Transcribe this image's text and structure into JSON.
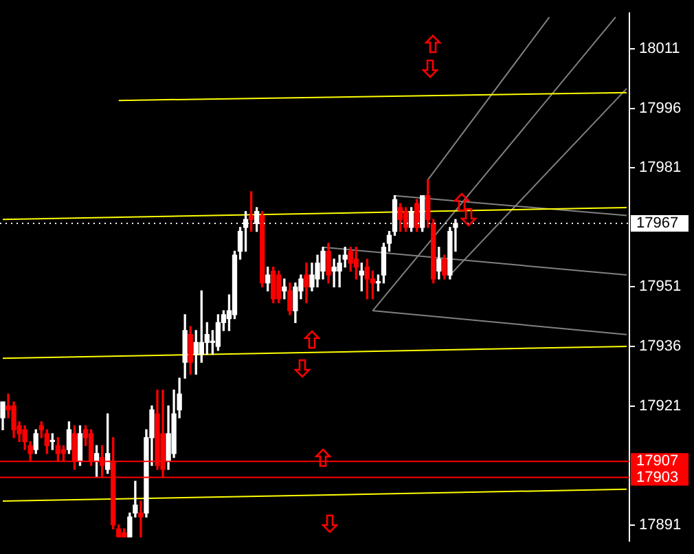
{
  "chart_data": {
    "type": "candlestick",
    "categories": [
      null,
      null,
      null,
      null,
      null,
      null,
      null,
      null,
      null,
      null,
      null,
      null,
      null,
      null,
      null,
      null,
      null,
      null,
      null,
      null,
      null,
      null,
      null,
      null,
      null,
      null,
      null,
      null,
      null,
      null,
      null,
      null,
      null,
      null,
      null,
      null,
      null,
      null,
      null,
      null,
      null,
      null,
      null,
      null,
      null,
      null,
      null,
      null,
      null,
      null,
      null,
      null,
      null,
      null,
      null,
      null,
      null,
      null,
      null,
      null,
      null,
      null,
      null,
      null,
      null,
      null,
      null,
      null,
      null,
      null,
      null,
      null,
      null,
      null,
      null,
      null,
      null,
      null,
      null,
      null,
      null,
      null,
      null,
      null,
      null,
      null,
      null,
      null,
      null,
      null,
      null,
      null,
      null,
      null,
      null,
      null,
      null,
      null,
      null,
      null,
      null,
      null,
      null,
      null,
      null,
      null,
      null,
      null,
      null,
      null,
      null,
      null,
      null,
      null
    ],
    "ohlc": [
      [
        17918,
        17922,
        17915,
        17922
      ],
      [
        17921,
        17924,
        17918,
        17920
      ],
      [
        17921,
        17922,
        17913,
        17915
      ],
      [
        17916,
        17917,
        17912,
        17914
      ],
      [
        17915,
        17916,
        17910,
        17912
      ],
      [
        17911,
        17912,
        17907,
        17909
      ],
      [
        17910,
        17915,
        17909,
        17914
      ],
      [
        17916,
        17917,
        17913,
        17915
      ],
      [
        17914,
        17915,
        17909,
        17911
      ],
      [
        17912,
        17914,
        17910,
        17912
      ],
      [
        17911,
        17913,
        17907,
        17909
      ],
      [
        17910,
        17911,
        17907,
        17909
      ],
      [
        17910,
        17917,
        17909,
        17915
      ],
      [
        17914,
        17916,
        17905,
        17907
      ],
      [
        17907,
        17916,
        17906,
        17914
      ],
      [
        17915,
        17916,
        17911,
        17913
      ],
      [
        17914,
        17915,
        17906,
        17907
      ],
      [
        17907,
        17911,
        17903,
        17909
      ],
      [
        17908,
        17911,
        17903,
        17906
      ],
      [
        17905,
        17919,
        17904,
        17909
      ],
      [
        17907,
        17913,
        17890,
        17891
      ],
      [
        17890,
        17891,
        17888,
        17888
      ],
      [
        17889,
        17890,
        17888,
        17888
      ],
      [
        17888,
        17894,
        17888,
        17893
      ],
      [
        17894,
        17902,
        17893,
        17896
      ],
      [
        17894,
        17897,
        17888,
        17893
      ],
      [
        17894,
        17915,
        17893,
        17913
      ],
      [
        17913,
        17921,
        17906,
        17920
      ],
      [
        17919,
        17925,
        17905,
        17906
      ],
      [
        17914,
        17925,
        17903,
        17905
      ],
      [
        17907,
        17921,
        17905,
        17914
      ],
      [
        17909,
        17925,
        17908,
        17919
      ],
      [
        17920,
        17928,
        17918,
        17924
      ],
      [
        17932,
        17944,
        17928,
        17940
      ],
      [
        17939,
        17941,
        17929,
        17932
      ],
      [
        17934,
        17940,
        17929,
        17937
      ],
      [
        17934,
        17950,
        17932,
        17937
      ],
      [
        17937,
        17942,
        17934,
        17939
      ],
      [
        17937,
        17940,
        17934,
        17937
      ],
      [
        17936,
        17944,
        17935,
        17942
      ],
      [
        17942,
        17945,
        17940,
        17944
      ],
      [
        17943,
        17949,
        17940,
        17945
      ],
      [
        17944,
        17960,
        17943,
        17959
      ],
      [
        17960,
        17966,
        17958,
        17965
      ],
      [
        17966,
        17970,
        17960,
        17968
      ],
      [
        17969,
        17975,
        17965,
        17968
      ],
      [
        17967,
        17971,
        17965,
        17970
      ],
      [
        17969,
        17970,
        17951,
        17952
      ],
      [
        17952,
        17956,
        17950,
        17954
      ],
      [
        17955,
        17956,
        17947,
        17948
      ],
      [
        17954,
        17955,
        17947,
        17948
      ],
      [
        17950,
        17953,
        17948,
        17951
      ],
      [
        17950,
        17952,
        17944,
        17945
      ],
      [
        17945,
        17952,
        17942,
        17951
      ],
      [
        17950,
        17954,
        17948,
        17953
      ],
      [
        17954,
        17957,
        17947,
        17951
      ],
      [
        17951,
        17957,
        17950,
        17954
      ],
      [
        17953,
        17959,
        17951,
        17957
      ],
      [
        17955,
        17961,
        17953,
        17960
      ],
      [
        17960,
        17962,
        17952,
        17954
      ],
      [
        17955,
        17958,
        17951,
        17956
      ],
      [
        17955,
        17959,
        17951,
        17957
      ],
      [
        17958,
        17961,
        17956,
        17959
      ],
      [
        17960,
        17961,
        17955,
        17957
      ],
      [
        17958,
        17961,
        17953,
        17956
      ],
      [
        17954,
        17957,
        17950,
        17955
      ],
      [
        17956,
        17958,
        17948,
        17953
      ],
      [
        17953,
        17955,
        17948,
        17952
      ],
      [
        17952,
        17954,
        17950,
        17952
      ],
      [
        17954,
        17962,
        17952,
        17961
      ],
      [
        17962,
        17965,
        17960,
        17964
      ],
      [
        17965,
        17974,
        17964,
        17973
      ],
      [
        17971,
        17972,
        17965,
        17968
      ],
      [
        17970,
        17971,
        17965,
        17966
      ],
      [
        17966,
        17971,
        17965,
        17970
      ],
      [
        17972,
        17973,
        17965,
        17966
      ],
      [
        17966,
        17974,
        17965,
        17974
      ],
      [
        17974,
        17978,
        17966,
        17968
      ],
      [
        17967,
        17968,
        17952,
        17953
      ],
      [
        17955,
        17961,
        17953,
        17958
      ],
      [
        17958,
        17959,
        17953,
        17954
      ],
      [
        17954,
        17966,
        17953,
        17965
      ],
      [
        17966,
        17968,
        17960,
        17967
      ],
      null,
      null,
      null,
      null,
      null,
      null,
      null,
      null,
      null,
      null,
      null,
      null,
      null,
      null,
      null,
      null,
      null,
      null,
      null,
      null,
      null,
      null,
      null,
      null,
      null,
      null,
      null,
      null,
      null,
      null,
      null
    ],
    "colors": [
      "#ffffff",
      "#ff0000",
      "#ff0000",
      "#ff0000",
      "#ff0000",
      "#ff0000",
      "#ffffff",
      "#ff0000",
      "#ff0000",
      "#ffffff",
      "#ff0000",
      "#ff0000",
      "#ffffff",
      "#ff0000",
      "#ffffff",
      "#ff0000",
      "#ff0000",
      "#ffffff",
      "#ff0000",
      "#ffffff",
      "#ff0000",
      "#ff0000",
      "#ff0000",
      "#ffffff",
      "#ffffff",
      "#ff0000",
      "#ffffff",
      "#ffffff",
      "#ff0000",
      "#ff0000",
      "#ffffff",
      "#ffffff",
      "#ffffff",
      "#ffffff",
      "#ff0000",
      "#ffffff",
      "#ffffff",
      "#ffffff",
      "#ffffff",
      "#ffffff",
      "#ffffff",
      "#ffffff",
      "#ffffff",
      "#ffffff",
      "#ffffff",
      "#ff0000",
      "#ffffff",
      "#ff0000",
      "#ffffff",
      "#ff0000",
      "#ff0000",
      "#ffffff",
      "#ff0000",
      "#ffffff",
      "#ffffff",
      "#ff0000",
      "#ffffff",
      "#ffffff",
      "#ffffff",
      "#ff0000",
      "#ffffff",
      "#ffffff",
      "#ffffff",
      "#ff0000",
      "#ff0000",
      "#ffffff",
      "#ff0000",
      "#ff0000",
      "#ffffff",
      "#ffffff",
      "#ffffff",
      "#ffffff",
      "#ff0000",
      "#ff0000",
      "#ffffff",
      "#ff0000",
      "#ffffff",
      "#ff0000",
      "#ff0000",
      "#ffffff",
      "#ff0000",
      "#ffffff",
      "#ffffff",
      null,
      null,
      null,
      null,
      null,
      null,
      null,
      null,
      null,
      null,
      null,
      null,
      null,
      null,
      null,
      null,
      null,
      null,
      null,
      null,
      null,
      null,
      null,
      null,
      null,
      null,
      null,
      null,
      null,
      null,
      null
    ],
    "series": [
      {
        "type": "line",
        "color": "#ffff00",
        "values": [
          null,
          null,
          null,
          null,
          null,
          null,
          null,
          null,
          null,
          null,
          null,
          null,
          null,
          null,
          null,
          null,
          null,
          null,
          null,
          null,
          null,
          17998,
          null,
          null,
          null,
          null,
          null,
          null,
          null,
          null,
          null,
          null,
          null,
          null,
          null,
          null,
          null,
          null,
          null,
          null,
          null,
          null,
          null,
          null,
          null,
          null,
          null,
          null,
          null,
          null,
          null,
          null,
          null,
          null,
          null,
          null,
          null,
          null,
          null,
          null,
          null,
          null,
          null,
          null,
          null,
          null,
          null,
          null,
          null,
          null,
          null,
          null,
          null,
          null,
          null,
          null,
          null,
          null,
          null,
          null,
          null,
          null,
          null,
          null,
          null,
          null,
          null,
          null,
          null,
          null,
          null,
          null,
          null,
          null,
          null,
          null,
          null,
          null,
          null,
          null,
          null,
          null,
          null,
          null,
          null,
          null,
          null,
          null,
          null,
          null,
          null,
          null,
          null,
          18000
        ]
      },
      {
        "type": "line",
        "color": "#ffff00",
        "values": [
          17968,
          null,
          null,
          null,
          null,
          null,
          null,
          null,
          null,
          null,
          null,
          null,
          null,
          null,
          null,
          null,
          null,
          null,
          null,
          null,
          null,
          null,
          null,
          null,
          null,
          null,
          null,
          null,
          null,
          null,
          null,
          null,
          null,
          null,
          null,
          null,
          null,
          null,
          null,
          null,
          null,
          null,
          null,
          null,
          null,
          null,
          null,
          null,
          null,
          null,
          null,
          null,
          null,
          null,
          null,
          null,
          null,
          null,
          null,
          null,
          null,
          null,
          null,
          null,
          null,
          null,
          null,
          null,
          null,
          null,
          null,
          null,
          null,
          null,
          null,
          null,
          null,
          null,
          null,
          null,
          null,
          null,
          null,
          null,
          null,
          null,
          null,
          null,
          null,
          null,
          null,
          null,
          null,
          null,
          null,
          null,
          null,
          null,
          null,
          null,
          null,
          null,
          null,
          null,
          null,
          null,
          null,
          null,
          null,
          null,
          null,
          null,
          null,
          17971
        ]
      },
      {
        "type": "line",
        "color": "#ffff00",
        "values": [
          17933,
          null,
          null,
          null,
          null,
          null,
          null,
          null,
          null,
          null,
          null,
          null,
          null,
          null,
          null,
          null,
          null,
          null,
          null,
          null,
          null,
          null,
          null,
          null,
          null,
          null,
          null,
          null,
          null,
          null,
          null,
          null,
          null,
          null,
          null,
          null,
          null,
          null,
          null,
          null,
          null,
          null,
          null,
          null,
          null,
          null,
          null,
          null,
          null,
          null,
          null,
          null,
          null,
          null,
          null,
          null,
          null,
          null,
          null,
          null,
          null,
          null,
          null,
          null,
          null,
          null,
          null,
          null,
          null,
          null,
          null,
          null,
          null,
          null,
          null,
          null,
          null,
          null,
          null,
          null,
          null,
          null,
          null,
          null,
          null,
          null,
          null,
          null,
          null,
          null,
          null,
          null,
          null,
          null,
          null,
          null,
          null,
          null,
          null,
          null,
          null,
          null,
          null,
          null,
          null,
          null,
          null,
          null,
          null,
          null,
          null,
          null,
          null,
          17936
        ]
      },
      {
        "type": "line",
        "color": "#ffff00",
        "values": [
          17897,
          null,
          null,
          null,
          null,
          null,
          null,
          null,
          null,
          null,
          null,
          null,
          null,
          null,
          null,
          null,
          null,
          null,
          null,
          null,
          null,
          null,
          null,
          null,
          null,
          null,
          null,
          null,
          null,
          null,
          null,
          null,
          null,
          null,
          null,
          null,
          null,
          null,
          null,
          null,
          null,
          null,
          null,
          null,
          null,
          null,
          null,
          null,
          null,
          null,
          null,
          null,
          null,
          null,
          null,
          null,
          null,
          null,
          null,
          null,
          null,
          null,
          null,
          null,
          null,
          null,
          null,
          null,
          null,
          null,
          null,
          null,
          null,
          null,
          null,
          null,
          null,
          null,
          null,
          null,
          null,
          null,
          null,
          null,
          null,
          null,
          null,
          null,
          null,
          null,
          null,
          null,
          null,
          null,
          null,
          null,
          null,
          null,
          null,
          null,
          null,
          null,
          null,
          null,
          null,
          null,
          null,
          null,
          null,
          null,
          null,
          null,
          null,
          17900
        ]
      },
      {
        "type": "line",
        "color": "#808080",
        "values": [
          null,
          null,
          null,
          null,
          null,
          null,
          null,
          null,
          null,
          null,
          null,
          null,
          null,
          null,
          null,
          null,
          null,
          null,
          null,
          null,
          null,
          null,
          null,
          null,
          null,
          null,
          null,
          null,
          null,
          null,
          null,
          null,
          null,
          null,
          null,
          null,
          null,
          null,
          null,
          null,
          null,
          null,
          null,
          null,
          null,
          null,
          null,
          null,
          null,
          null,
          null,
          null,
          null,
          null,
          null,
          null,
          null,
          null,
          17961,
          null,
          null,
          null,
          null,
          null,
          null,
          null,
          null,
          null,
          null,
          null,
          null,
          null,
          null,
          null,
          null,
          null,
          null,
          null,
          null,
          null,
          null,
          null,
          null,
          null,
          null,
          null,
          null,
          null,
          null,
          null,
          null,
          null,
          null,
          null,
          null,
          null,
          null,
          null,
          null,
          null,
          null,
          null,
          null,
          null,
          null,
          null,
          null,
          null,
          null,
          null,
          null,
          null,
          null,
          17954
        ]
      },
      {
        "type": "line",
        "color": "#808080",
        "values": [
          null,
          null,
          null,
          null,
          null,
          null,
          null,
          null,
          null,
          null,
          null,
          null,
          null,
          null,
          null,
          null,
          null,
          null,
          null,
          null,
          null,
          null,
          null,
          null,
          null,
          null,
          null,
          null,
          null,
          null,
          null,
          null,
          null,
          null,
          null,
          null,
          null,
          null,
          null,
          null,
          null,
          null,
          null,
          null,
          null,
          null,
          null,
          null,
          null,
          null,
          null,
          null,
          null,
          null,
          null,
          null,
          null,
          null,
          null,
          null,
          null,
          null,
          null,
          null,
          null,
          null,
          null,
          17945,
          null,
          null,
          null,
          null,
          null,
          null,
          null,
          null,
          null,
          null,
          null,
          null,
          null,
          null,
          null,
          null,
          null,
          null,
          null,
          null,
          null,
          null,
          null,
          null,
          null,
          null,
          null,
          null,
          null,
          null,
          null,
          null,
          null,
          null,
          null,
          null,
          null,
          null,
          null,
          null,
          null,
          null,
          null,
          null,
          null,
          17939
        ]
      },
      {
        "type": "line",
        "color": "#808080",
        "values": [
          null,
          null,
          null,
          null,
          null,
          null,
          null,
          null,
          null,
          null,
          null,
          null,
          null,
          null,
          null,
          null,
          null,
          null,
          null,
          null,
          null,
          null,
          null,
          null,
          null,
          null,
          null,
          null,
          null,
          null,
          null,
          null,
          null,
          null,
          null,
          null,
          null,
          null,
          null,
          null,
          null,
          null,
          null,
          null,
          null,
          null,
          null,
          null,
          null,
          null,
          null,
          null,
          null,
          null,
          null,
          null,
          null,
          null,
          null,
          null,
          null,
          null,
          null,
          null,
          null,
          null,
          null,
          null,
          null,
          null,
          null,
          17974,
          null,
          null,
          null,
          null,
          null,
          null,
          null,
          null,
          null,
          null,
          null,
          null,
          null,
          null,
          null,
          null,
          null,
          null,
          null,
          null,
          null,
          null,
          null,
          null,
          null,
          null,
          null,
          null,
          null,
          null,
          null,
          null,
          null,
          null,
          null,
          null,
          null,
          null,
          null,
          null,
          null,
          17969
        ]
      },
      {
        "type": "line",
        "color": "#808080",
        "values": [
          null,
          null,
          null,
          null,
          null,
          null,
          null,
          null,
          null,
          null,
          null,
          null,
          null,
          null,
          null,
          null,
          null,
          null,
          null,
          null,
          null,
          null,
          null,
          null,
          null,
          null,
          null,
          null,
          null,
          null,
          null,
          null,
          null,
          null,
          null,
          null,
          null,
          null,
          null,
          null,
          null,
          null,
          null,
          null,
          null,
          null,
          null,
          null,
          null,
          null,
          null,
          null,
          null,
          null,
          null,
          null,
          null,
          null,
          null,
          null,
          null,
          null,
          null,
          null,
          null,
          null,
          null,
          null,
          null,
          null,
          null,
          null,
          null,
          null,
          null,
          null,
          null,
          17978,
          null,
          null,
          null,
          null,
          null,
          null,
          null,
          null,
          null,
          null,
          null,
          null,
          null,
          null,
          null,
          null,
          null,
          null,
          null,
          null,
          null,
          18019,
          null,
          null,
          null,
          null,
          null,
          null,
          null,
          null,
          null,
          null,
          null,
          null,
          null,
          null
        ]
      },
      {
        "type": "line",
        "color": "#808080",
        "values": [
          null,
          null,
          null,
          null,
          null,
          null,
          null,
          null,
          null,
          null,
          null,
          null,
          null,
          null,
          null,
          null,
          null,
          null,
          null,
          null,
          null,
          null,
          null,
          null,
          null,
          null,
          null,
          null,
          null,
          null,
          null,
          null,
          null,
          null,
          null,
          null,
          null,
          null,
          null,
          null,
          null,
          null,
          null,
          null,
          null,
          null,
          null,
          null,
          null,
          null,
          null,
          null,
          null,
          null,
          null,
          null,
          null,
          null,
          null,
          null,
          null,
          null,
          null,
          null,
          null,
          null,
          null,
          17945,
          null,
          null,
          null,
          null,
          null,
          null,
          null,
          null,
          null,
          null,
          null,
          null,
          null,
          null,
          null,
          null,
          null,
          null,
          null,
          null,
          null,
          null,
          null,
          null,
          null,
          null,
          null,
          null,
          null,
          null,
          null,
          null,
          null,
          null,
          null,
          null,
          null,
          null,
          null,
          null,
          null,
          null,
          null,
          18019,
          null,
          null
        ]
      },
      {
        "type": "line",
        "color": "#808080",
        "values": [
          null,
          null,
          null,
          null,
          null,
          null,
          null,
          null,
          null,
          null,
          null,
          null,
          null,
          null,
          null,
          null,
          null,
          null,
          null,
          null,
          null,
          null,
          null,
          null,
          null,
          null,
          null,
          null,
          null,
          null,
          null,
          null,
          null,
          null,
          null,
          null,
          null,
          null,
          null,
          null,
          null,
          null,
          null,
          null,
          null,
          null,
          null,
          null,
          null,
          null,
          null,
          null,
          null,
          null,
          null,
          null,
          null,
          null,
          null,
          null,
          null,
          null,
          null,
          null,
          null,
          null,
          null,
          null,
          null,
          null,
          null,
          null,
          null,
          null,
          null,
          null,
          null,
          null,
          null,
          null,
          null,
          17954,
          null,
          null,
          null,
          null,
          null,
          null,
          null,
          null,
          null,
          null,
          null,
          null,
          null,
          null,
          null,
          null,
          null,
          null,
          null,
          null,
          null,
          null,
          null,
          null,
          null,
          null,
          null,
          null,
          null,
          null,
          null,
          18001
        ]
      }
    ],
    "ylim": [
      17887,
      18020
    ],
    "yticks": [
      18011,
      17996,
      17981,
      17951,
      17936,
      17921,
      17891
    ],
    "ref_lines": [
      {
        "axis": "y",
        "value": 17907,
        "label": "17907",
        "color": "#ff0000"
      },
      {
        "axis": "y",
        "value": 17903,
        "label": "17903",
        "color": "#ff0000"
      },
      {
        "axis": "y",
        "value": 17967,
        "label": "17967",
        "color": "#ffffff",
        "line_style": "dotted"
      }
    ]
  }
}
